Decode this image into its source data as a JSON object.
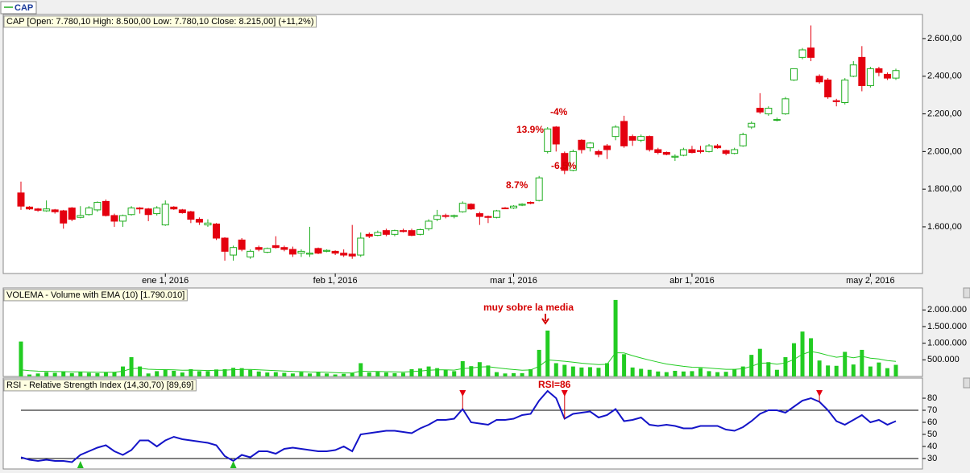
{
  "chart_data": [
    {
      "type": "candlestick",
      "legend": "CAP",
      "title": "CAP [Open: 7.780,10  High: 8.500,00  Low: 7.780,10  Close: 8.215,00] (+11,2%)",
      "categories": [
        null,
        null,
        null,
        null,
        null,
        null,
        null,
        null,
        null,
        null,
        null,
        null,
        null,
        null,
        null,
        null,
        null,
        "ene 1, 2016",
        null,
        null,
        null,
        null,
        null,
        null,
        null,
        null,
        null,
        null,
        null,
        null,
        null,
        null,
        null,
        null,
        null,
        null,
        null,
        "feb 1, 2016",
        null,
        null,
        null,
        null,
        null,
        null,
        null,
        null,
        null,
        null,
        null,
        null,
        null,
        null,
        null,
        null,
        null,
        null,
        null,
        null,
        "mar 1, 2016",
        null,
        null,
        null,
        null,
        null,
        null,
        null,
        null,
        null,
        null,
        null,
        null,
        null,
        null,
        null,
        null,
        null,
        null,
        null,
        null,
        "abr 1, 2016",
        null,
        null,
        null,
        null,
        null,
        null,
        null,
        null,
        null,
        null,
        null,
        null,
        null,
        null,
        null,
        null,
        null,
        null,
        null,
        null,
        "may 2, 2016",
        null,
        null,
        null
      ],
      "ohlc": [
        [
          1780,
          1840,
          1690,
          1710
        ],
        [
          1705,
          1710,
          1690,
          1695
        ],
        [
          1695,
          1700,
          1680,
          1688
        ],
        [
          1685,
          1740,
          1680,
          1695
        ],
        [
          1690,
          1695,
          1670,
          1680
        ],
        [
          1685,
          1690,
          1590,
          1620
        ],
        [
          1700,
          1705,
          1630,
          1640
        ],
        [
          1650,
          1710,
          1645,
          1660
        ],
        [
          1665,
          1710,
          1660,
          1700
        ],
        [
          1690,
          1735,
          1680,
          1730
        ],
        [
          1735,
          1745,
          1655,
          1660
        ],
        [
          1660,
          1670,
          1600,
          1630
        ],
        [
          1630,
          1665,
          1600,
          1660
        ],
        [
          1665,
          1710,
          1660,
          1700
        ],
        [
          1700,
          1705,
          1670,
          1695
        ],
        [
          1695,
          1700,
          1630,
          1665
        ],
        [
          1670,
          1710,
          1660,
          1700
        ],
        [
          1610,
          1740,
          1605,
          1720
        ],
        [
          1705,
          1710,
          1690,
          1695
        ],
        [
          1690,
          1695,
          1670,
          1675
        ],
        [
          1680,
          1685,
          1620,
          1640
        ],
        [
          1640,
          1650,
          1610,
          1625
        ],
        [
          1610,
          1640,
          1600,
          1620
        ],
        [
          1615,
          1620,
          1530,
          1540
        ],
        [
          1540,
          1545,
          1420,
          1470
        ],
        [
          1450,
          1500,
          1420,
          1490
        ],
        [
          1530,
          1540,
          1470,
          1480
        ],
        [
          1440,
          1480,
          1430,
          1470
        ],
        [
          1490,
          1500,
          1470,
          1480
        ],
        [
          1465,
          1490,
          1460,
          1485
        ],
        [
          1500,
          1550,
          1485,
          1490
        ],
        [
          1490,
          1500,
          1470,
          1480
        ],
        [
          1480,
          1495,
          1440,
          1455
        ],
        [
          1460,
          1480,
          1440,
          1470
        ],
        [
          1455,
          1600,
          1440,
          1460
        ],
        [
          1485,
          1490,
          1455,
          1460
        ],
        [
          1470,
          1480,
          1465,
          1475
        ],
        [
          1470,
          1475,
          1450,
          1460
        ],
        [
          1460,
          1480,
          1440,
          1450
        ],
        [
          1455,
          1610,
          1430,
          1445
        ],
        [
          1450,
          1570,
          1440,
          1540
        ],
        [
          1560,
          1570,
          1540,
          1550
        ],
        [
          1555,
          1580,
          1550,
          1570
        ],
        [
          1580,
          1590,
          1550,
          1560
        ],
        [
          1560,
          1585,
          1550,
          1580
        ],
        [
          1580,
          1590,
          1570,
          1575
        ],
        [
          1580,
          1590,
          1550,
          1555
        ],
        [
          1560,
          1590,
          1555,
          1585
        ],
        [
          1590,
          1640,
          1580,
          1630
        ],
        [
          1640,
          1690,
          1630,
          1660
        ],
        [
          1660,
          1670,
          1645,
          1655
        ],
        [
          1655,
          1665,
          1645,
          1660
        ],
        [
          1680,
          1735,
          1675,
          1725
        ],
        [
          1720,
          1725,
          1690,
          1695
        ],
        [
          1670,
          1680,
          1610,
          1655
        ],
        [
          1655,
          1660,
          1620,
          1650
        ],
        [
          1650,
          1690,
          1645,
          1685
        ],
        [
          1700,
          1705,
          1695,
          1697
        ],
        [
          1700,
          1715,
          1695,
          1710
        ],
        [
          1715,
          1725,
          1710,
          1720
        ],
        [
          1730,
          1735,
          1720,
          1725
        ],
        [
          1740,
          1870,
          1735,
          1860
        ],
        [
          2000,
          2130,
          1990,
          2120
        ],
        [
          2130,
          2135,
          2000,
          2040
        ],
        [
          1990,
          2000,
          1880,
          1900
        ],
        [
          1900,
          2010,
          1895,
          2000
        ],
        [
          2060,
          2065,
          1990,
          2010
        ],
        [
          2020,
          2050,
          2000,
          2045
        ],
        [
          2000,
          2010,
          1970,
          1985
        ],
        [
          2030,
          2040,
          1960,
          2010
        ],
        [
          2080,
          2140,
          2060,
          2130
        ],
        [
          2160,
          2190,
          2020,
          2030
        ],
        [
          2080,
          2090,
          2030,
          2060
        ],
        [
          2060,
          2090,
          2050,
          2080
        ],
        [
          2080,
          2085,
          2000,
          2010
        ],
        [
          2010,
          2020,
          1985,
          1995
        ],
        [
          1995,
          2000,
          1980,
          1985
        ],
        [
          1970,
          1985,
          1950,
          1975
        ],
        [
          1980,
          2020,
          1975,
          2010
        ],
        [
          2010,
          2030,
          1990,
          1995
        ],
        [
          2005,
          2030,
          1990,
          2000
        ],
        [
          2000,
          2040,
          1995,
          2030
        ],
        [
          2030,
          2040,
          2015,
          2020
        ],
        [
          2005,
          2010,
          1980,
          1990
        ],
        [
          1990,
          2020,
          1985,
          2010
        ],
        [
          2030,
          2100,
          2025,
          2090
        ],
        [
          2130,
          2160,
          2120,
          2150
        ],
        [
          2230,
          2310,
          2200,
          2210
        ],
        [
          2200,
          2240,
          2190,
          2230
        ],
        [
          2170,
          2180,
          2160,
          2170
        ],
        [
          2200,
          2290,
          2195,
          2280
        ],
        [
          2380,
          2440,
          2375,
          2440
        ],
        [
          2500,
          2550,
          2490,
          2540
        ],
        [
          2550,
          2670,
          2480,
          2500
        ],
        [
          2400,
          2410,
          2360,
          2370
        ],
        [
          2380,
          2390,
          2280,
          2290
        ],
        [
          2270,
          2280,
          2240,
          2265
        ],
        [
          2260,
          2390,
          2250,
          2380
        ],
        [
          2400,
          2480,
          2395,
          2460
        ],
        [
          2500,
          2560,
          2320,
          2350
        ],
        [
          2350,
          2450,
          2340,
          2440
        ],
        [
          2440,
          2450,
          2400,
          2420
        ],
        [
          2410,
          2420,
          2380,
          2390
        ],
        [
          2390,
          2440,
          2380,
          2430
        ]
      ],
      "up_color": "#1fae1f",
      "down_color": "#e4000f",
      "ylim": [
        1352,
        2728
      ],
      "yticks": [
        {
          "value": 1600,
          "label": "1.600,00"
        },
        {
          "value": 1800,
          "label": "1.800,00"
        },
        {
          "value": 2000,
          "label": "2.000,00"
        },
        {
          "value": 2200,
          "label": "2.200,00"
        },
        {
          "value": 2400,
          "label": "2.400,00"
        },
        {
          "value": 2600,
          "label": "2.600,00"
        }
      ],
      "annotations": [
        "8.7%",
        "13.9%",
        "-4%",
        "-6.5%"
      ]
    },
    {
      "type": "bar",
      "title": "VOLEMA - Volume with EMA (10) [1.790.010]",
      "color": "#22cc22",
      "values": [
        1050000,
        60000,
        90000,
        130000,
        110000,
        140000,
        100000,
        140000,
        110000,
        100000,
        120000,
        130000,
        300000,
        580000,
        300000,
        90000,
        160000,
        200000,
        170000,
        120000,
        220000,
        160000,
        160000,
        210000,
        220000,
        260000,
        250000,
        200000,
        150000,
        120000,
        130000,
        110000,
        90000,
        130000,
        90000,
        120000,
        90000,
        60000,
        80000,
        100000,
        400000,
        120000,
        140000,
        120000,
        100000,
        110000,
        220000,
        240000,
        300000,
        250000,
        200000,
        160000,
        460000,
        310000,
        430000,
        330000,
        130000,
        90000,
        100000,
        100000,
        220000,
        800000,
        1380000,
        400000,
        350000,
        300000,
        270000,
        280000,
        260000,
        400000,
        2300000,
        670000,
        270000,
        230000,
        200000,
        150000,
        130000,
        170000,
        150000,
        160000,
        250000,
        160000,
        130000,
        140000,
        220000,
        300000,
        650000,
        830000,
        430000,
        200000,
        580000,
        1000000,
        1350000,
        1150000,
        480000,
        330000,
        320000,
        740000,
        360000,
        800000,
        300000,
        420000,
        250000,
        350000
      ],
      "ema_values": [
        200000,
        175000,
        160000,
        155000,
        147000,
        146000,
        138000,
        138000,
        133000,
        127000,
        126000,
        127000,
        158000,
        234000,
        246000,
        218000,
        208000,
        206000,
        199000,
        185000,
        191000,
        185000,
        180000,
        186000,
        192000,
        204000,
        212000,
        210000,
        199000,
        185000,
        175000,
        163000,
        150000,
        146000,
        136000,
        133000,
        125000,
        113000,
        107000,
        106000,
        159000,
        152000,
        150000,
        145000,
        137000,
        132000,
        148000,
        164000,
        188000,
        199000,
        199000,
        192000,
        240000,
        253000,
        285000,
        293000,
        264000,
        233000,
        209000,
        189000,
        195000,
        304000,
        498000,
        480000,
        457000,
        429000,
        400000,
        378000,
        357000,
        365000,
        713000,
        705000,
        627000,
        556000,
        492000,
        430000,
        376000,
        339000,
        305000,
        279000,
        274000,
        253000,
        231000,
        215000,
        216000,
        231000,
        306000,
        400000,
        405000,
        368000,
        406000,
        513000,
        664000,
        752000,
        703000,
        636000,
        579000,
        608000,
        563000,
        606000,
        551000,
        527000,
        477000,
        454000
      ],
      "ylim": [
        0,
        2660000
      ],
      "yticks": [
        {
          "value": 500000,
          "label": "500.000"
        },
        {
          "value": 1000000,
          "label": "1.000.000"
        },
        {
          "value": 1500000,
          "label": "1.500.000"
        },
        {
          "value": 2000000,
          "label": "2.000.000"
        }
      ],
      "annotation": "muy sobre la media"
    },
    {
      "type": "line",
      "title": "RSI - Relative Strength Index (14,30,70) [89,69]",
      "color": "#1414c8",
      "values": [
        31,
        29,
        28,
        29,
        28,
        28,
        27,
        33,
        36,
        39,
        41,
        36,
        33,
        37,
        45,
        45,
        40,
        45,
        48,
        46,
        45,
        44,
        43,
        41,
        32,
        28,
        33,
        31,
        36,
        36,
        34,
        38,
        39,
        38,
        37,
        36,
        36,
        37,
        40,
        36,
        50,
        51,
        52,
        53,
        53,
        52,
        51,
        55,
        58,
        62,
        62,
        63,
        71,
        60,
        59,
        58,
        62,
        62,
        63,
        66,
        67,
        78,
        86,
        80,
        63,
        67,
        68,
        69,
        64,
        66,
        71,
        61,
        62,
        64,
        58,
        57,
        58,
        57,
        55,
        55,
        57,
        57,
        57,
        54,
        53,
        56,
        61,
        67,
        70,
        70,
        68,
        73,
        78,
        80,
        77,
        70,
        61,
        58,
        62,
        66,
        60,
        62,
        58,
        61
      ],
      "ylim": [
        21.3,
        96.7
      ],
      "yticks": [
        30,
        40,
        50,
        60,
        70,
        80
      ],
      "levels": [
        30,
        70
      ],
      "sell_signals": [
        52,
        64,
        94
      ],
      "buy_signals": [
        7,
        25
      ],
      "annotation": "RSI=86"
    }
  ]
}
